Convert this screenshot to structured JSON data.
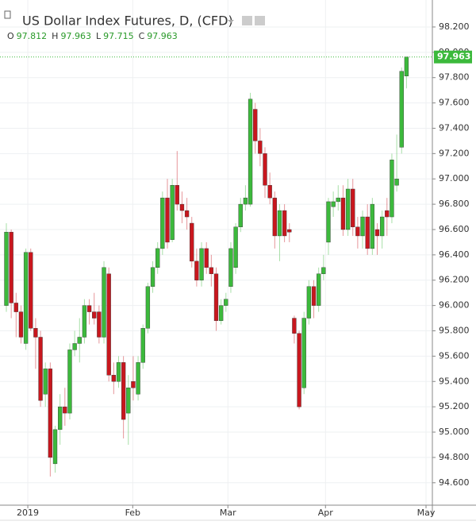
{
  "chart_data": {
    "type": "candlestick",
    "title": "US Dollar Index Futures, D, (CFD)",
    "ohlc_header": [
      {
        "label": "O",
        "value": "97.812"
      },
      {
        "label": "H",
        "value": "97.963"
      },
      {
        "label": "L",
        "value": "97.715"
      },
      {
        "label": "C",
        "value": "97.963"
      }
    ],
    "last_price": {
      "value": 97.963,
      "label": "97.963"
    },
    "up_color": "#3cb93c",
    "down_color": "#c8171e",
    "grid": true,
    "open": [
      96.0,
      96.58,
      96.02,
      95.95,
      95.7,
      96.42,
      95.82,
      95.75,
      95.3,
      95.5,
      94.75,
      95.02,
      95.2,
      95.15,
      95.65,
      95.7,
      95.75,
      96.0,
      95.95,
      95.95,
      95.75,
      96.25,
      95.45,
      95.4,
      95.55,
      95.15,
      95.4,
      95.3,
      95.55,
      95.82,
      96.15,
      96.3,
      96.45,
      96.85,
      96.52,
      96.95,
      96.8,
      96.75,
      96.65,
      96.35,
      96.2,
      96.45,
      96.3,
      96.25,
      95.88,
      96.0,
      96.15,
      96.3,
      96.62,
      96.8,
      96.8,
      97.55,
      97.3,
      97.2,
      96.95,
      96.85,
      96.55,
      96.75,
      96.6,
      95.9,
      95.78,
      95.35,
      95.9,
      96.15,
      96.0,
      96.25,
      96.5,
      96.78,
      96.82,
      96.85,
      96.6,
      96.92,
      96.62,
      96.55,
      96.7,
      96.45,
      96.6,
      96.55,
      96.75,
      96.7,
      96.95,
      97.25,
      97.812
    ],
    "high": [
      96.65,
      96.6,
      96.1,
      96.0,
      96.45,
      96.45,
      95.9,
      95.8,
      95.55,
      95.55,
      95.05,
      95.3,
      95.35,
      95.7,
      95.8,
      95.9,
      96.05,
      96.05,
      96.1,
      96.0,
      96.35,
      96.3,
      95.55,
      95.6,
      95.6,
      95.45,
      95.6,
      95.6,
      95.85,
      96.18,
      96.35,
      96.5,
      96.9,
      97.0,
      97.0,
      97.22,
      96.9,
      96.85,
      96.7,
      96.45,
      96.5,
      96.5,
      96.4,
      96.3,
      96.05,
      96.1,
      96.5,
      96.65,
      96.85,
      96.95,
      97.68,
      97.6,
      97.4,
      97.25,
      97.05,
      96.9,
      96.8,
      96.8,
      96.65,
      95.92,
      95.8,
      95.95,
      96.2,
      96.2,
      96.3,
      96.4,
      96.85,
      96.9,
      96.95,
      96.95,
      97.0,
      97.0,
      96.7,
      96.75,
      96.8,
      96.85,
      96.65,
      96.75,
      96.85,
      97.2,
      97.35,
      97.88,
      97.963
    ],
    "low": [
      95.95,
      95.9,
      95.75,
      95.7,
      95.65,
      95.8,
      95.5,
      95.2,
      95.2,
      94.65,
      94.68,
      94.9,
      95.05,
      95.1,
      95.6,
      95.55,
      95.7,
      95.85,
      95.85,
      95.7,
      95.7,
      95.4,
      95.3,
      95.35,
      94.95,
      94.9,
      95.25,
      95.25,
      95.5,
      95.78,
      96.1,
      96.25,
      96.4,
      96.45,
      96.5,
      96.75,
      96.65,
      96.6,
      96.3,
      96.15,
      96.15,
      96.25,
      96.15,
      95.8,
      95.85,
      95.95,
      96.1,
      96.25,
      96.58,
      96.75,
      96.78,
      97.2,
      97.1,
      96.85,
      96.8,
      96.45,
      96.35,
      96.5,
      96.5,
      95.7,
      95.18,
      95.3,
      95.85,
      95.9,
      95.95,
      96.2,
      96.4,
      96.7,
      96.75,
      96.55,
      96.55,
      96.55,
      96.45,
      96.45,
      96.4,
      96.4,
      96.4,
      96.45,
      96.55,
      96.65,
      96.9,
      97.2,
      97.715
    ],
    "close": [
      96.58,
      96.02,
      95.95,
      95.75,
      96.42,
      95.82,
      95.75,
      95.25,
      95.5,
      94.8,
      95.02,
      95.2,
      95.15,
      95.65,
      95.7,
      95.75,
      96.0,
      95.95,
      95.9,
      95.75,
      96.3,
      95.45,
      95.4,
      95.55,
      95.1,
      95.35,
      95.35,
      95.55,
      95.82,
      96.15,
      96.3,
      96.45,
      96.85,
      96.5,
      96.95,
      96.8,
      96.75,
      96.7,
      96.35,
      96.2,
      96.45,
      96.3,
      96.25,
      95.88,
      96.0,
      96.05,
      96.45,
      96.62,
      96.8,
      96.85,
      97.63,
      97.3,
      97.2,
      96.95,
      96.85,
      96.55,
      96.75,
      96.55,
      96.58,
      95.78,
      95.2,
      95.9,
      96.15,
      96.0,
      96.25,
      96.3,
      96.82,
      96.82,
      96.85,
      96.6,
      96.92,
      96.62,
      96.55,
      96.7,
      96.45,
      96.8,
      96.55,
      96.7,
      96.7,
      97.15,
      97.0,
      97.85,
      97.963
    ],
    "xlim": [
      -1.3,
      87.3
    ],
    "xticks": [
      {
        "value": 4.4,
        "label": "2019"
      },
      {
        "value": 25.9,
        "label": "Feb"
      },
      {
        "value": 45.4,
        "label": "Mar"
      },
      {
        "value": 65.4,
        "label": "Apr"
      },
      {
        "value": 86.0,
        "label": "May"
      }
    ],
    "ylim": [
      94.423,
      98.413
    ],
    "yticks": [
      {
        "value": 94.6,
        "label": "94.600"
      },
      {
        "value": 94.8,
        "label": "94.800"
      },
      {
        "value": 95.0,
        "label": "95.000"
      },
      {
        "value": 95.2,
        "label": "95.200"
      },
      {
        "value": 95.4,
        "label": "95.400"
      },
      {
        "value": 95.6,
        "label": "95.600"
      },
      {
        "value": 95.8,
        "label": "95.800"
      },
      {
        "value": 96.0,
        "label": "96.000"
      },
      {
        "value": 96.2,
        "label": "96.200"
      },
      {
        "value": 96.4,
        "label": "96.400"
      },
      {
        "value": 96.6,
        "label": "96.600"
      },
      {
        "value": 96.8,
        "label": "96.800"
      },
      {
        "value": 97.0,
        "label": "97.000"
      },
      {
        "value": 97.2,
        "label": "97.200"
      },
      {
        "value": 97.4,
        "label": "97.400"
      },
      {
        "value": 97.6,
        "label": "97.600"
      },
      {
        "value": 97.8,
        "label": "97.800"
      },
      {
        "value": 98.0,
        "label": "98.000"
      },
      {
        "value": 98.2,
        "label": "98.200"
      }
    ]
  }
}
